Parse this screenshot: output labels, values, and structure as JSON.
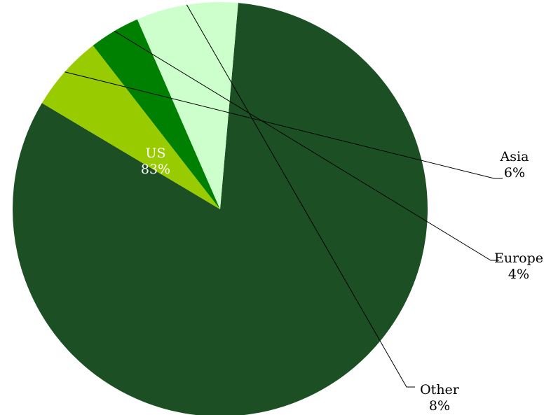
{
  "chart_data": {
    "type": "pie",
    "title": "",
    "slices": [
      {
        "label": "US",
        "value": 83,
        "display": "83%",
        "color": "#1c5024"
      },
      {
        "label": "Asia",
        "value": 6,
        "display": "6%",
        "color": "#99cc00"
      },
      {
        "label": "Europe",
        "value": 4,
        "display": "4%",
        "color": "#008000"
      },
      {
        "label": "Other",
        "value": 8,
        "display": "8%",
        "color": "#ccffcc"
      }
    ],
    "start_angle_deg": -85,
    "direction": "clockwise",
    "label_colors": {
      "inside": "#ffffff",
      "outside": "#000000"
    }
  }
}
